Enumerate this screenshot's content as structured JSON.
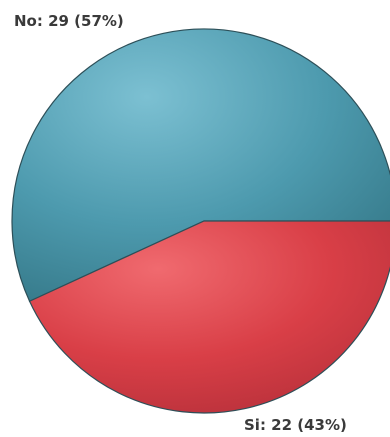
{
  "chart_data": {
    "type": "pie",
    "slices": [
      {
        "label": "No: 29 (57%)",
        "value": 29,
        "percent": 57,
        "color": "#4d9aae"
      },
      {
        "label": "Si: 22 (43%)",
        "value": 22,
        "percent": 43,
        "color": "#d93f47"
      }
    ]
  }
}
